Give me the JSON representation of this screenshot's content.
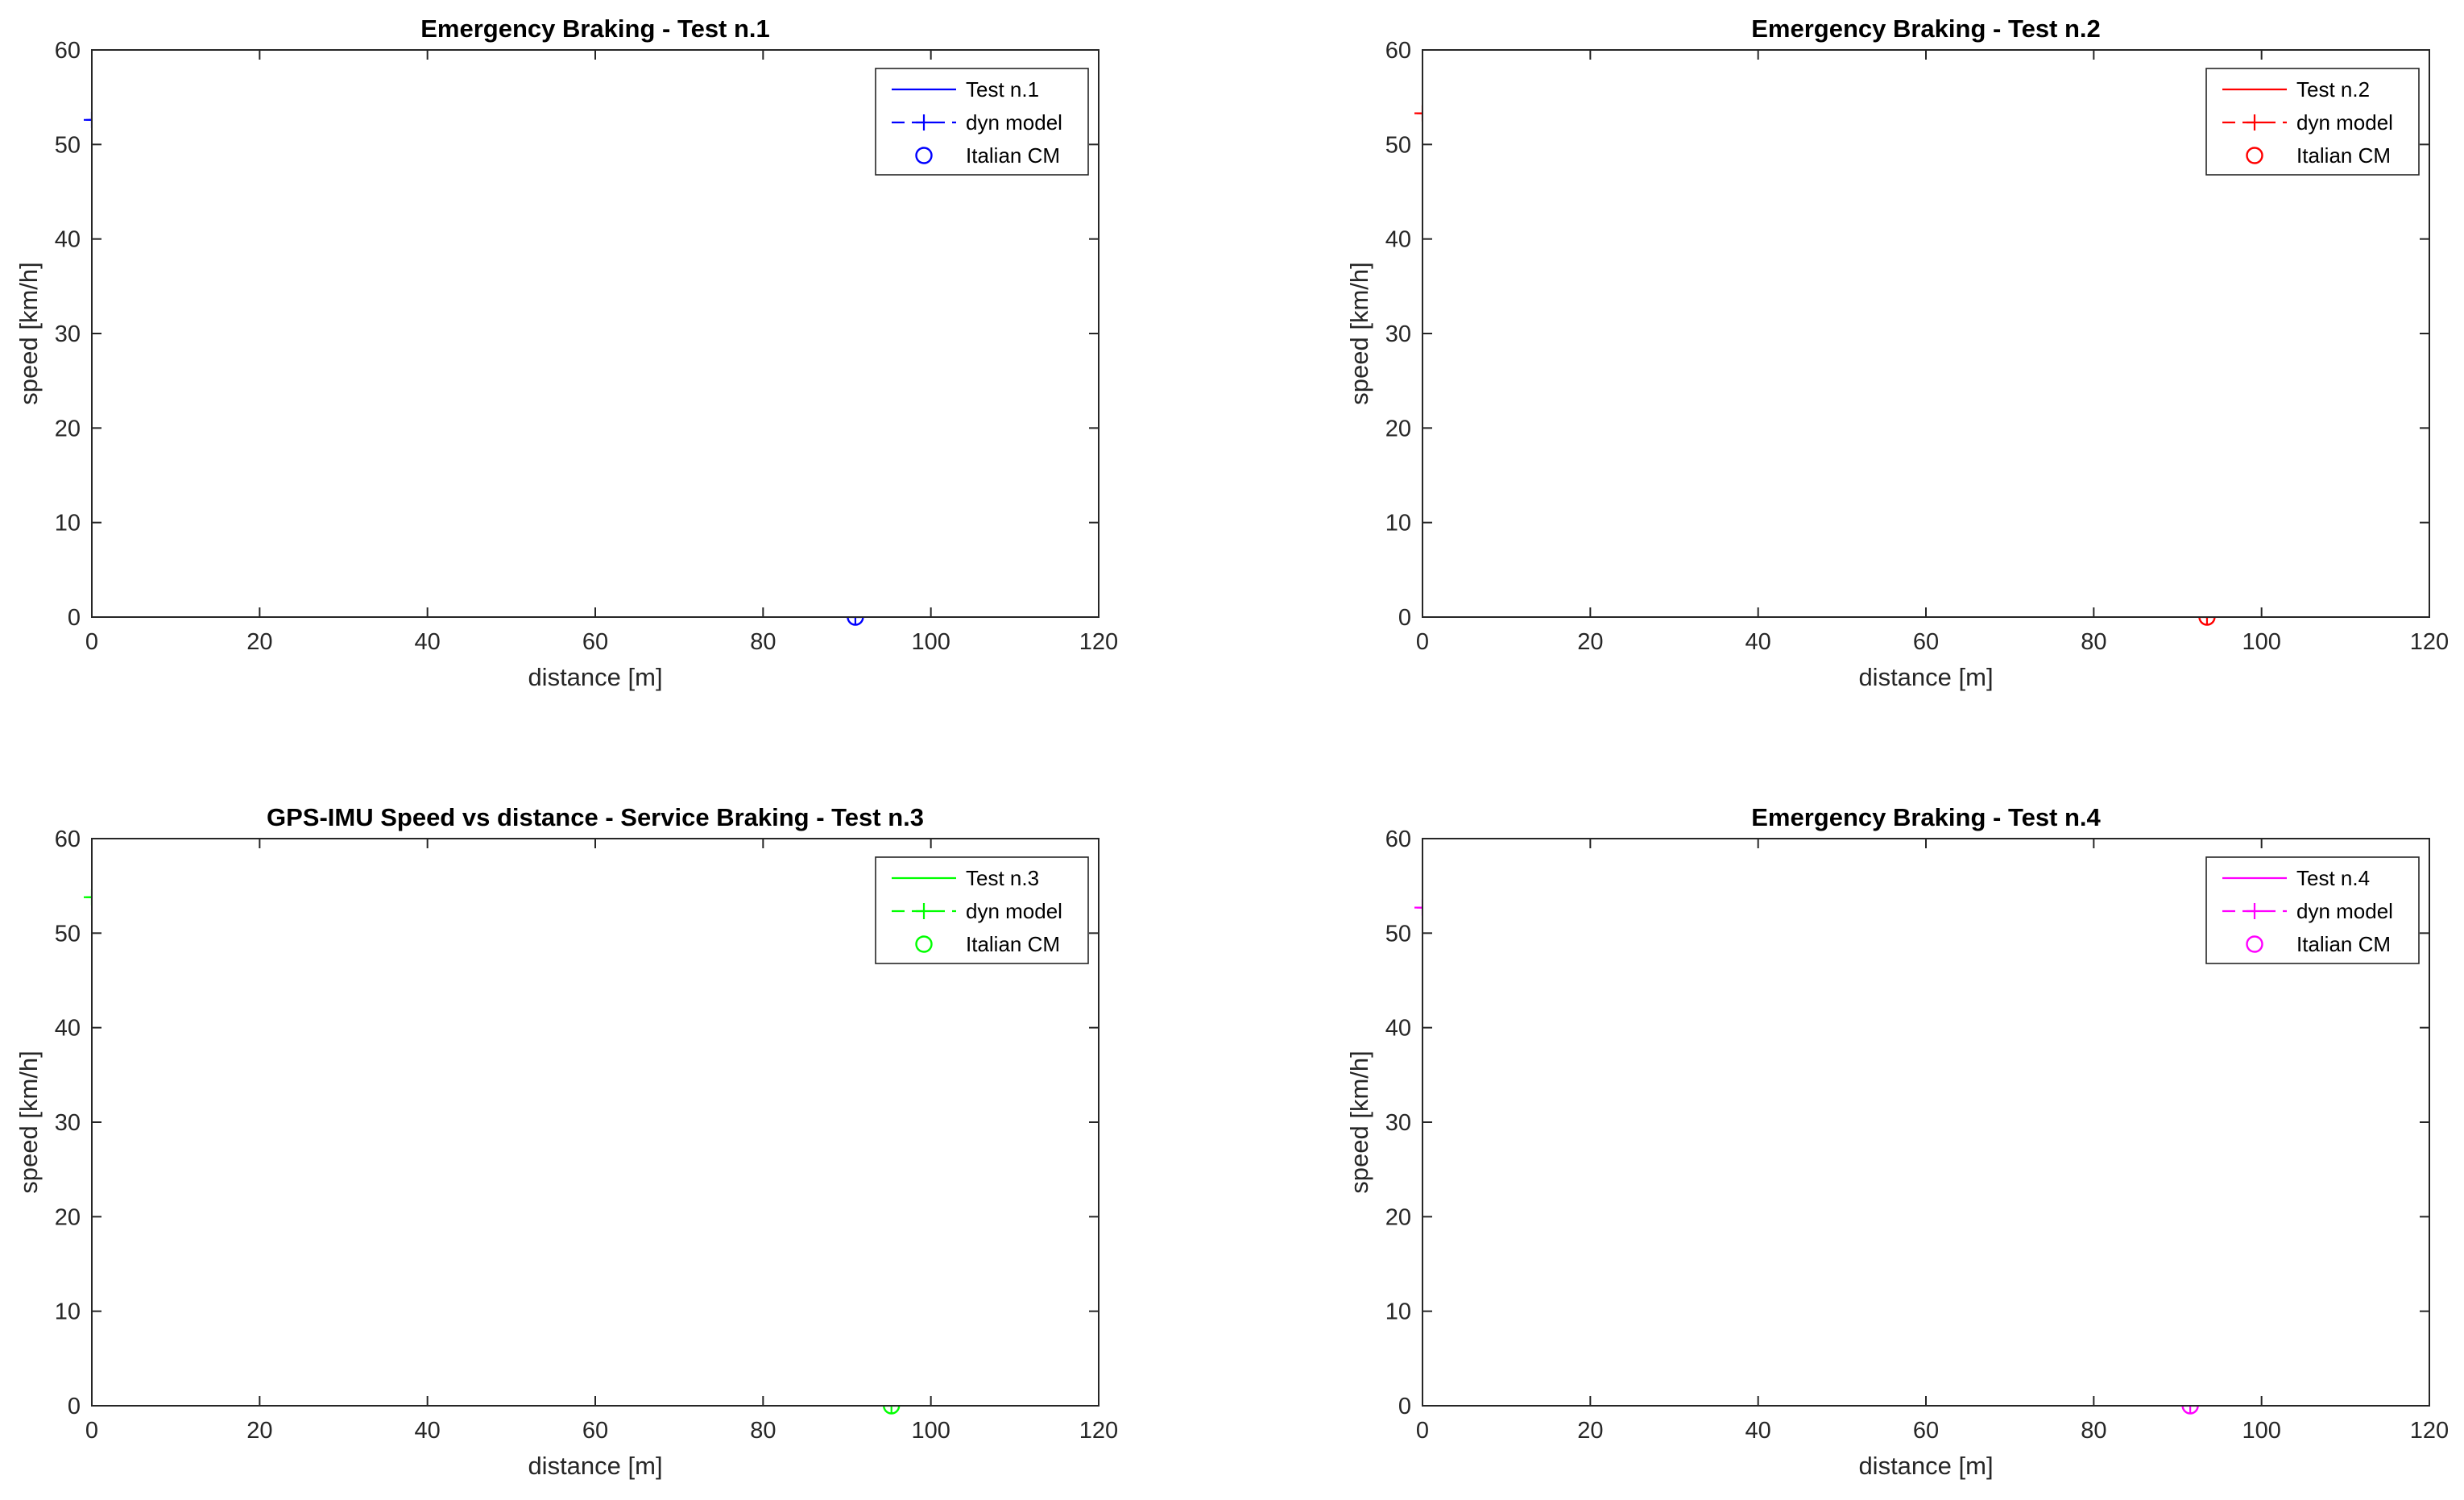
{
  "chart_data": [
    {
      "type": "line",
      "title": "Emergency Braking - Test n.1",
      "xlabel": "distance [m]",
      "ylabel": "speed [km/h]",
      "xlim": [
        0,
        120
      ],
      "ylim": [
        0,
        60
      ],
      "xticks": [
        0,
        20,
        40,
        60,
        80,
        100,
        120
      ],
      "yticks": [
        0,
        10,
        20,
        30,
        40,
        50,
        60
      ],
      "grid": true,
      "legend_position": "top-right",
      "color": "#0000ff",
      "series": [
        {
          "name": "Test n.1",
          "style": "solid",
          "x": [
            0,
            10,
            16,
            20,
            25,
            30,
            35,
            40,
            47,
            55,
            62,
            68,
            75,
            80,
            85,
            88,
            89.5,
            90.5,
            91
          ],
          "y": [
            52.5,
            52.4,
            51.6,
            50.7,
            49.1,
            47.4,
            45.6,
            43.6,
            40.5,
            36.8,
            33.3,
            29.9,
            25.2,
            21.3,
            16.6,
            12.9,
            10.5,
            7.5,
            0
          ]
        },
        {
          "name": "dyn model",
          "style": "dashed",
          "marker": "plus",
          "x": [
            0,
            0.3,
            0.6,
            1,
            1.5,
            2,
            3,
            4,
            8,
            12,
            16,
            19.5,
            24.5,
            29.5,
            34,
            38.8,
            47,
            54.8,
            62,
            68,
            78,
            85.3,
            89.5,
            91
          ],
          "y": [
            52.6,
            52.6,
            52.6,
            52.6,
            52.6,
            52.6,
            52.6,
            52.6,
            52.6,
            52.4,
            51.9,
            51,
            49.4,
            47.6,
            45.9,
            44.3,
            41,
            37.5,
            34,
            30.3,
            23.5,
            16.3,
            8.4,
            0
          ]
        },
        {
          "name": "Italian CM",
          "style": "marker-only",
          "marker": "circle",
          "x": [
            91
          ],
          "y": [
            0
          ]
        }
      ]
    },
    {
      "type": "line",
      "title": "Emergency Braking - Test n.2",
      "xlabel": "distance [m]",
      "ylabel": "speed [km/h]",
      "xlim": [
        0,
        120
      ],
      "ylim": [
        0,
        60
      ],
      "xticks": [
        0,
        20,
        40,
        60,
        80,
        100,
        120
      ],
      "yticks": [
        0,
        10,
        20,
        30,
        40,
        50,
        60
      ],
      "grid": true,
      "legend_position": "top-right",
      "color": "#ff0000",
      "series": [
        {
          "name": "Test n.2",
          "style": "solid",
          "x": [
            0,
            10,
            16,
            20,
            25,
            30,
            35,
            40,
            45,
            50,
            55,
            60,
            65,
            70,
            75,
            80,
            85,
            90,
            94,
            97,
            98.8,
            99.6,
            100
          ],
          "y": [
            53.3,
            53.2,
            52.8,
            52.3,
            51.1,
            49.5,
            47.8,
            46,
            44.2,
            42.3,
            40.1,
            37.8,
            35.2,
            32.3,
            29.2,
            25.5,
            21.3,
            16,
            10.5,
            6,
            3,
            1.2,
            0
          ]
        },
        {
          "name": "dyn model",
          "style": "dashed",
          "marker": "plus",
          "x": [
            0,
            0.3,
            0.6,
            1,
            1.5,
            2,
            3,
            4,
            8,
            12,
            16,
            19.5,
            24.5,
            29.5,
            34,
            39,
            47.3,
            55.2,
            62.5,
            68.7,
            79.3,
            86.8,
            91.8,
            93.5
          ],
          "y": [
            53.3,
            53.3,
            53.3,
            53.3,
            53.3,
            53.3,
            53.3,
            53.3,
            53.3,
            53.1,
            52.6,
            51.6,
            50,
            48.3,
            46.6,
            44.8,
            41.6,
            38.2,
            34.8,
            31.3,
            24.2,
            16.6,
            8.9,
            0
          ]
        },
        {
          "name": "Italian CM",
          "style": "marker-only",
          "marker": "circle",
          "x": [
            93.5
          ],
          "y": [
            0
          ]
        }
      ]
    },
    {
      "type": "line",
      "title": "GPS-IMU Speed vs distance - Service Braking - Test n.3",
      "xlabel": "distance [m]",
      "ylabel": "speed [km/h]",
      "xlim": [
        0,
        120
      ],
      "ylim": [
        0,
        60
      ],
      "xticks": [
        0,
        20,
        40,
        60,
        80,
        100,
        120
      ],
      "yticks": [
        0,
        10,
        20,
        30,
        40,
        50,
        60
      ],
      "grid": true,
      "legend_position": "top-right",
      "color": "#00ff00",
      "series": [
        {
          "name": "Test n.3",
          "style": "solid",
          "x": [
            0,
            10,
            16,
            20,
            25,
            30,
            35,
            40,
            45,
            50,
            55,
            60,
            65,
            70,
            75,
            80,
            85,
            90,
            95,
            99,
            101.5,
            102.8,
            103.4,
            103.6
          ],
          "y": [
            53.9,
            53.8,
            53.5,
            52.9,
            51.6,
            49.9,
            48.1,
            46.3,
            44.5,
            42.6,
            40.6,
            38.5,
            36.3,
            33.9,
            31.2,
            28.2,
            24.7,
            20.5,
            15.2,
            9.4,
            5.3,
            2.6,
            1,
            0
          ]
        },
        {
          "name": "dyn model",
          "style": "dashed",
          "marker": "plus",
          "x": [
            0,
            0.3,
            0.6,
            1,
            1.5,
            2,
            3,
            4,
            8,
            12,
            16,
            19.5,
            25,
            30,
            35.2,
            40.3,
            48.5,
            56.3,
            63.3,
            69.5,
            80.3,
            88.3,
            93.5,
            95.3
          ],
          "y": [
            53.8,
            53.8,
            53.8,
            53.8,
            53.8,
            53.8,
            53.8,
            53.8,
            53.8,
            53.7,
            53.2,
            52.4,
            50.7,
            49,
            47.2,
            45.5,
            42.2,
            38.8,
            35.5,
            32,
            24.8,
            17,
            8.8,
            0
          ]
        },
        {
          "name": "Italian CM",
          "style": "marker-only",
          "marker": "circle",
          "x": [
            95.3
          ],
          "y": [
            0
          ]
        }
      ]
    },
    {
      "type": "line",
      "title": "Emergency Braking - Test n.4",
      "xlabel": "distance [m]",
      "ylabel": "speed [km/h]",
      "xlim": [
        0,
        120
      ],
      "ylim": [
        0,
        60
      ],
      "xticks": [
        0,
        20,
        40,
        60,
        80,
        100,
        120
      ],
      "yticks": [
        0,
        10,
        20,
        30,
        40,
        50,
        60
      ],
      "grid": true,
      "legend_position": "top-right",
      "color": "#ff00ff",
      "series": [
        {
          "name": "Test n.4",
          "style": "solid",
          "x": [
            0,
            10,
            16,
            20,
            25,
            30,
            35,
            40,
            45,
            50,
            55,
            60,
            65,
            70,
            75,
            80,
            85,
            90,
            94,
            97.5,
            99.5,
            100.4,
            100.8
          ],
          "y": [
            52.7,
            52.6,
            52.2,
            51.7,
            50.4,
            48.8,
            47.2,
            45.4,
            43.6,
            41.6,
            39.4,
            37.1,
            34.6,
            31.8,
            28.7,
            25.2,
            21.1,
            15.9,
            10.8,
            5.9,
            2.8,
            1.1,
            0
          ]
        },
        {
          "name": "dyn model",
          "style": "dashed",
          "marker": "plus",
          "x": [
            0,
            0.3,
            0.6,
            1,
            1.5,
            2,
            3,
            4,
            8,
            12,
            16,
            19.5,
            24.5,
            29.5,
            34,
            38.8,
            47,
            54.8,
            62,
            68,
            78,
            85.3,
            89.8,
            91.5
          ],
          "y": [
            52.7,
            52.7,
            52.7,
            52.7,
            52.7,
            52.7,
            52.7,
            52.7,
            52.7,
            52.6,
            52,
            51.1,
            49.4,
            47.7,
            46,
            44.3,
            41,
            37.5,
            34,
            30.4,
            23.6,
            16.3,
            8.3,
            0
          ]
        },
        {
          "name": "Italian CM",
          "style": "marker-only",
          "marker": "circle",
          "x": [
            91.5
          ],
          "y": [
            0
          ]
        }
      ]
    }
  ]
}
